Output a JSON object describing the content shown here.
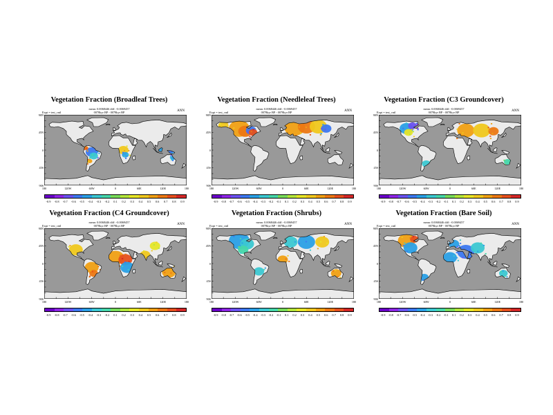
{
  "colors": {
    "ocean": "#999999",
    "land": "#ebebeb",
    "coast": "#000000",
    "scale": [
      "#6a00c8",
      "#8e26e6",
      "#6a52f0",
      "#3c78f0",
      "#2aa0e6",
      "#3cc8d2",
      "#46d7aa",
      "#78dc5a",
      "#b4e63c",
      "#e6e628",
      "#f0c81e",
      "#f0a014",
      "#ec7814",
      "#e6501e",
      "#d42828"
    ]
  },
  "common": {
    "stat_text": "mean: 0.00xxxxx diff: -0.00xxxxx",
    "period_text": "0000kyr BP - 0078kyr BP",
    "expt_text": "Expt = test_cntl",
    "season": "ANN",
    "lat_labels": [
      "90N",
      "45N",
      "0",
      "45S",
      "90S"
    ],
    "lon_labels": [
      "180",
      "120W",
      "60W",
      "0",
      "60E",
      "120E",
      "180"
    ]
  },
  "panels": [
    {
      "title": "Vegetation Fraction (Broadleaf Trees)",
      "stat_text": "mean: 0.0068446 diff: -0.0069457",
      "period_text": "0078kyr BP - 0078kyr BP",
      "colorbar_labels": [
        "-0.9",
        "-0.8",
        "-0.7",
        "-0.6",
        "-0.5",
        "-0.4",
        "-0.3",
        "-0.2",
        "0.1",
        "0.2",
        "0.3",
        "0.4",
        "0.5",
        "0.6",
        "0.7",
        "0.8",
        "0.9"
      ],
      "anomalies": [
        {
          "lon": -60,
          "lat": -5,
          "level": 3,
          "r": 7
        },
        {
          "lon": -55,
          "lat": -15,
          "level": 5,
          "r": 5
        },
        {
          "lon": -65,
          "lat": -28,
          "level": 11,
          "r": 3
        },
        {
          "lon": -75,
          "lat": 5,
          "level": 12,
          "r": 3
        },
        {
          "lon": 20,
          "lat": 0,
          "level": 10,
          "r": 6
        },
        {
          "lon": 25,
          "lat": -12,
          "level": 4,
          "r": 4
        },
        {
          "lon": 110,
          "lat": 2,
          "level": 4,
          "r": 4
        },
        {
          "lon": 140,
          "lat": -5,
          "level": 3,
          "r": 3
        },
        {
          "lon": 145,
          "lat": -20,
          "level": 4,
          "r": 3
        }
      ]
    },
    {
      "title": "Vegetation Fraction (Needleleaf Trees)",
      "stat_text": "mean: 0.0068446 diff: -0.0069457",
      "period_text": "0078kyr BP - 0078kyr BP",
      "colorbar_labels": [
        "-0.9",
        "-0.8",
        "-0.7",
        "-0.6",
        "-0.5",
        "-0.4",
        "-0.3",
        "-0.2",
        "-0.1",
        "0.1",
        "0.2",
        "0.3",
        "0.4",
        "0.5",
        "0.6",
        "0.7",
        "0.8",
        "0.9"
      ],
      "anomalies": [
        {
          "lon": -110,
          "lat": 55,
          "level": 11,
          "r": 12
        },
        {
          "lon": -95,
          "lat": 48,
          "level": 12,
          "r": 8
        },
        {
          "lon": -80,
          "lat": 50,
          "level": 3,
          "r": 6
        },
        {
          "lon": -75,
          "lat": 45,
          "level": 13,
          "r": 5
        },
        {
          "lon": 30,
          "lat": 58,
          "level": 11,
          "r": 12
        },
        {
          "lon": 60,
          "lat": 60,
          "level": 12,
          "r": 10
        },
        {
          "lon": 90,
          "lat": 60,
          "level": 10,
          "r": 10
        },
        {
          "lon": 110,
          "lat": 55,
          "level": 3,
          "r": 6
        },
        {
          "lon": -150,
          "lat": 62,
          "level": 10,
          "r": 6
        }
      ]
    },
    {
      "title": "Vegetation Fraction (C3 Groundcover)",
      "stat_text": "mean: 0.0068446 diff: -0.0069457",
      "period_text": "0078kyr BP - 0078kyr BP",
      "colorbar_labels": [
        "-0.9",
        "-0.8",
        "-0.7",
        "-0.6",
        "-0.5",
        "-0.4",
        "-0.3",
        "-0.2",
        "-0.1",
        "0.1",
        "0.2",
        "0.3",
        "0.4",
        "0.5",
        "0.6",
        "0.7",
        "0.8",
        "0.9"
      ],
      "anomalies": [
        {
          "lon": -110,
          "lat": 55,
          "level": 4,
          "r": 8
        },
        {
          "lon": -95,
          "lat": 62,
          "level": 2,
          "r": 5
        },
        {
          "lon": -105,
          "lat": 45,
          "level": 9,
          "r": 5
        },
        {
          "lon": 40,
          "lat": 50,
          "level": 11,
          "r": 10
        },
        {
          "lon": 80,
          "lat": 50,
          "level": 10,
          "r": 10
        },
        {
          "lon": 110,
          "lat": 48,
          "level": 12,
          "r": 6
        },
        {
          "lon": -60,
          "lat": -35,
          "level": 5,
          "r": 5
        },
        {
          "lon": 145,
          "lat": -30,
          "level": 6,
          "r": 4
        }
      ]
    },
    {
      "title": "Vegetation Fraction (C4 Groundcover)",
      "stat_text": "mean: 0.0068446 diff: -0.0069457",
      "period_text": "0078kyr BP - 0078kyr BP",
      "colorbar_labels": [
        "-0.9",
        "-0.8",
        "-0.7",
        "-0.6",
        "-0.5",
        "-0.4",
        "-0.3",
        "-0.2",
        "0.1",
        "0.2",
        "0.3",
        "0.4",
        "0.5",
        "0.6",
        "0.7",
        "0.8",
        "0.9"
      ],
      "anomalies": [
        {
          "lon": -100,
          "lat": 35,
          "level": 10,
          "r": 8
        },
        {
          "lon": -60,
          "lat": -10,
          "level": 11,
          "r": 8
        },
        {
          "lon": -55,
          "lat": -25,
          "level": 12,
          "r": 5
        },
        {
          "lon": 0,
          "lat": 15,
          "level": 11,
          "r": 10
        },
        {
          "lon": 25,
          "lat": 10,
          "level": 13,
          "r": 8
        },
        {
          "lon": 30,
          "lat": -10,
          "level": 4,
          "r": 8
        },
        {
          "lon": 75,
          "lat": 22,
          "level": 10,
          "r": 6
        },
        {
          "lon": 135,
          "lat": -22,
          "level": 11,
          "r": 8
        },
        {
          "lon": 100,
          "lat": 45,
          "level": 9,
          "r": 6
        }
      ]
    },
    {
      "title": "Vegetation Fraction (Shrubs)",
      "stat_text": "mean: 0.0068446 diff: -0.0069457",
      "period_text": "0078kyr BP - 0078kyr BP",
      "colorbar_labels": [
        "-0.9",
        "-0.8",
        "-0.7",
        "-0.6",
        "-0.5",
        "-0.4",
        "-0.3",
        "-0.2",
        "-0.1",
        "0.1",
        "0.2",
        "0.3",
        "0.4",
        "0.5",
        "0.6",
        "0.7",
        "0.8",
        "0.9"
      ],
      "anomalies": [
        {
          "lon": -110,
          "lat": 58,
          "level": 4,
          "r": 12
        },
        {
          "lon": -90,
          "lat": 50,
          "level": 5,
          "r": 8
        },
        {
          "lon": -100,
          "lat": 35,
          "level": 6,
          "r": 6
        },
        {
          "lon": 20,
          "lat": 55,
          "level": 5,
          "r": 8
        },
        {
          "lon": 60,
          "lat": 55,
          "level": 4,
          "r": 10
        },
        {
          "lon": 100,
          "lat": 55,
          "level": 10,
          "r": 8
        },
        {
          "lon": 0,
          "lat": 10,
          "level": 11,
          "r": 6
        },
        {
          "lon": -60,
          "lat": -20,
          "level": 5,
          "r": 6
        },
        {
          "lon": 135,
          "lat": -25,
          "level": 11,
          "r": 6
        }
      ]
    },
    {
      "title": "Vegetation Fraction (Bare Soil)",
      "stat_text": "mean: 0.0068446 diff: -0.0069457",
      "period_text": "0078kyr BP - 0078kyr BP",
      "colorbar_labels": [
        "-0.9",
        "-0.8",
        "-0.7",
        "-0.6",
        "-0.5",
        "-0.4",
        "-0.3",
        "-0.2",
        "-0.1",
        "0.1",
        "0.2",
        "0.3",
        "0.4",
        "0.5",
        "0.6",
        "0.7",
        "0.8",
        "0.9"
      ],
      "anomalies": [
        {
          "lon": -110,
          "lat": 58,
          "level": 11,
          "r": 10
        },
        {
          "lon": -90,
          "lat": 62,
          "level": 13,
          "r": 5
        },
        {
          "lon": -100,
          "lat": 40,
          "level": 4,
          "r": 8
        },
        {
          "lon": 10,
          "lat": 50,
          "level": 4,
          "r": 6
        },
        {
          "lon": 40,
          "lat": 30,
          "level": 3,
          "r": 10
        },
        {
          "lon": 0,
          "lat": 15,
          "level": 4,
          "r": 8
        },
        {
          "lon": 70,
          "lat": 40,
          "level": 5,
          "r": 8
        },
        {
          "lon": -65,
          "lat": -35,
          "level": 4,
          "r": 5
        },
        {
          "lon": 135,
          "lat": -25,
          "level": 5,
          "r": 5
        }
      ]
    }
  ]
}
